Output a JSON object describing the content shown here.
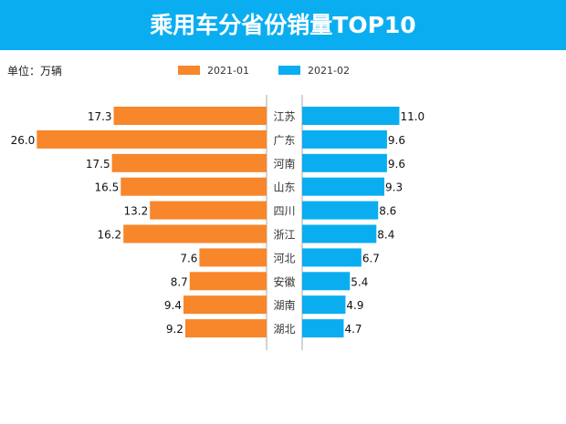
{
  "chart_data": {
    "type": "bar",
    "orientation": "horizontal-butterfly",
    "title": "乘用车分省份销量TOP10",
    "unit_label": "单位：万辆",
    "legend_placement": "top",
    "categories": [
      "江苏",
      "广东",
      "河南",
      "山东",
      "四川",
      "浙江",
      "河北",
      "安徽",
      "湖南",
      "湖北"
    ],
    "series": [
      {
        "name": "2021-01",
        "color": "#f8862a",
        "values": [
          17.3,
          26.0,
          17.5,
          16.5,
          13.2,
          16.2,
          7.6,
          8.7,
          9.4,
          9.2
        ]
      },
      {
        "name": "2021-02",
        "color": "#0aaef0",
        "values": [
          11.0,
          9.6,
          9.6,
          9.3,
          8.6,
          8.4,
          6.7,
          5.4,
          4.9,
          4.7
        ]
      }
    ],
    "grid": false
  }
}
